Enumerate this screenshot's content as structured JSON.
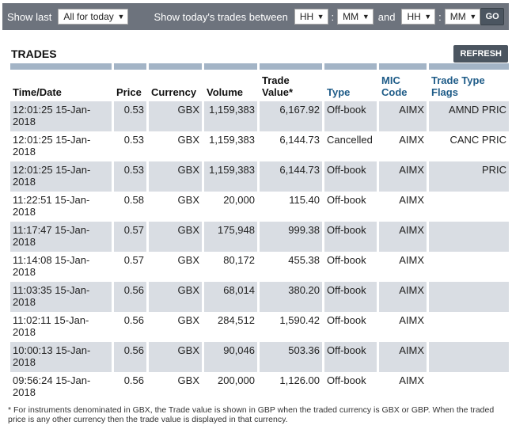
{
  "filter": {
    "show_last_label": "Show last",
    "period_value": "All for today",
    "between_label": "Show today's trades between",
    "from_hh": "HH",
    "from_mm": "MM",
    "and_label": "and",
    "to_hh": "HH",
    "to_mm": "MM",
    "go_label": "GO"
  },
  "section": {
    "title": "TRADES",
    "refresh_label": "REFRESH"
  },
  "table": {
    "headers": {
      "time": "Time/Date",
      "price": "Price",
      "currency": "Currency",
      "volume": "Volume",
      "trade_value": "Trade Value*",
      "type": "Type",
      "mic": "MIC Code",
      "flags": "Trade Type Flags"
    },
    "rows": [
      {
        "time": "12:01:25 15-Jan-2018",
        "price": "0.53",
        "currency": "GBX",
        "volume": "1,159,383",
        "value": "6,167.92",
        "type": "Off-book",
        "mic": "AIMX",
        "flag": "AMND PRIC"
      },
      {
        "time": "12:01:25 15-Jan-2018",
        "price": "0.53",
        "currency": "GBX",
        "volume": "1,159,383",
        "value": "6,144.73",
        "type": "Cancelled",
        "mic": "AIMX",
        "flag": "CANC PRIC"
      },
      {
        "time": "12:01:25 15-Jan-2018",
        "price": "0.53",
        "currency": "GBX",
        "volume": "1,159,383",
        "value": "6,144.73",
        "type": "Off-book",
        "mic": "AIMX",
        "flag": "PRIC"
      },
      {
        "time": "11:22:51 15-Jan-2018",
        "price": "0.58",
        "currency": "GBX",
        "volume": "20,000",
        "value": "115.40",
        "type": "Off-book",
        "mic": "AIMX",
        "flag": ""
      },
      {
        "time": "11:17:47 15-Jan-2018",
        "price": "0.57",
        "currency": "GBX",
        "volume": "175,948",
        "value": "999.38",
        "type": "Off-book",
        "mic": "AIMX",
        "flag": ""
      },
      {
        "time": "11:14:08 15-Jan-2018",
        "price": "0.57",
        "currency": "GBX",
        "volume": "80,172",
        "value": "455.38",
        "type": "Off-book",
        "mic": "AIMX",
        "flag": ""
      },
      {
        "time": "11:03:35 15-Jan-2018",
        "price": "0.56",
        "currency": "GBX",
        "volume": "68,014",
        "value": "380.20",
        "type": "Off-book",
        "mic": "AIMX",
        "flag": ""
      },
      {
        "time": "11:02:11 15-Jan-2018",
        "price": "0.56",
        "currency": "GBX",
        "volume": "284,512",
        "value": "1,590.42",
        "type": "Off-book",
        "mic": "AIMX",
        "flag": ""
      },
      {
        "time": "10:00:13 15-Jan-2018",
        "price": "0.56",
        "currency": "GBX",
        "volume": "90,046",
        "value": "503.36",
        "type": "Off-book",
        "mic": "AIMX",
        "flag": ""
      },
      {
        "time": "09:56:24 15-Jan-2018",
        "price": "0.56",
        "currency": "GBX",
        "volume": "200,000",
        "value": "1,126.00",
        "type": "Off-book",
        "mic": "AIMX",
        "flag": ""
      }
    ]
  },
  "footnote": "* For instruments denominated in GBX, the Trade value is shown in GBP when the traded currency is GBX or GBP. When the traded price is any other currency then the trade value is displayed in that currency.",
  "colors": {
    "filter_bar": "#6d737d",
    "button": "#4b5560",
    "header_rule": "#a3b4c6",
    "row_shade": "#d9dde3",
    "link_header": "#1f5c88"
  }
}
